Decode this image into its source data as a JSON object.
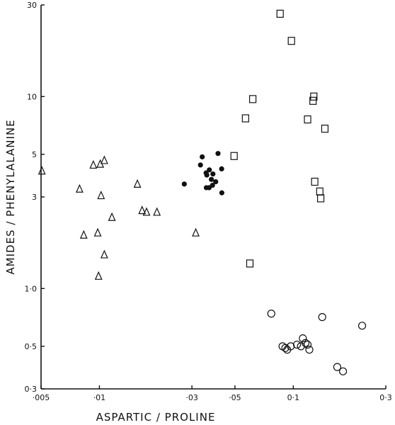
{
  "chart_data": {
    "type": "scatter",
    "title": "",
    "xlabel": "ASPARTIC / PROLINE",
    "ylabel": "AMIDES / PHENYLALANINE",
    "x_scale": "log",
    "y_scale": "log",
    "xlim": [
      0.005,
      0.3
    ],
    "ylim": [
      0.3,
      30
    ],
    "grid": false,
    "legend": "none",
    "x_ticks": [
      {
        "value": 0.005,
        "label": "·005"
      },
      {
        "value": 0.01,
        "label": "·01"
      },
      {
        "value": 0.03,
        "label": "·03"
      },
      {
        "value": 0.05,
        "label": "·05"
      },
      {
        "value": 0.1,
        "label": "0·1"
      },
      {
        "value": 0.3,
        "label": "0·3"
      }
    ],
    "y_ticks": [
      {
        "value": 0.3,
        "label": "0·3"
      },
      {
        "value": 0.5,
        "label": "0·5"
      },
      {
        "value": 1,
        "label": "1·0"
      },
      {
        "value": 3,
        "label": "3"
      },
      {
        "value": 5,
        "label": "5"
      },
      {
        "value": 10,
        "label": "10"
      },
      {
        "value": 30,
        "label": "30"
      }
    ],
    "series": [
      {
        "marker": "triangle-open",
        "points": [
          [
            0.00505,
            4.1
          ],
          [
            0.0079,
            3.3
          ],
          [
            0.0083,
            1.9
          ],
          [
            0.0093,
            4.4
          ],
          [
            0.0101,
            4.45
          ],
          [
            0.0106,
            4.65
          ],
          [
            0.0098,
            1.95
          ],
          [
            0.0102,
            3.05
          ],
          [
            0.0106,
            1.5
          ],
          [
            0.0116,
            2.35
          ],
          [
            0.0099,
            1.16
          ],
          [
            0.0157,
            3.5
          ],
          [
            0.0166,
            2.55
          ],
          [
            0.0175,
            2.5
          ],
          [
            0.0198,
            2.5
          ],
          [
            0.0314,
            1.95
          ]
        ]
      },
      {
        "marker": "circle-filled",
        "points": [
          [
            0.0274,
            3.5
          ],
          [
            0.0332,
            4.4
          ],
          [
            0.0339,
            4.85
          ],
          [
            0.0355,
            4.0
          ],
          [
            0.0369,
            4.15
          ],
          [
            0.0358,
            3.9
          ],
          [
            0.0378,
            3.7
          ],
          [
            0.0385,
            3.95
          ],
          [
            0.0383,
            3.45
          ],
          [
            0.0398,
            3.6
          ],
          [
            0.0356,
            3.35
          ],
          [
            0.0368,
            3.35
          ],
          [
            0.0409,
            5.05
          ],
          [
            0.0427,
            4.2
          ],
          [
            0.0428,
            3.15
          ]
        ]
      },
      {
        "marker": "square-open",
        "points": [
          [
            0.0855,
            27
          ],
          [
            0.0978,
            19.5
          ],
          [
            0.0618,
            9.7
          ],
          [
            0.0567,
            7.7
          ],
          [
            0.0495,
            4.9
          ],
          [
            0.0597,
            1.35
          ],
          [
            0.1276,
            10
          ],
          [
            0.1264,
            9.5
          ],
          [
            0.1185,
            7.6
          ],
          [
            0.1455,
            6.8
          ],
          [
            0.129,
            3.6
          ],
          [
            0.137,
            3.2
          ],
          [
            0.1385,
            2.95
          ]
        ]
      },
      {
        "marker": "circle-open",
        "points": [
          [
            0.077,
            0.74
          ],
          [
            0.088,
            0.5
          ],
          [
            0.091,
            0.49
          ],
          [
            0.093,
            0.48
          ],
          [
            0.097,
            0.5
          ],
          [
            0.1045,
            0.51
          ],
          [
            0.1095,
            0.5
          ],
          [
            0.112,
            0.55
          ],
          [
            0.1155,
            0.52
          ],
          [
            0.1185,
            0.51
          ],
          [
            0.121,
            0.48
          ],
          [
            0.141,
            0.71
          ],
          [
            0.1685,
            0.39
          ],
          [
            0.1805,
            0.37
          ],
          [
            0.2265,
            0.64
          ]
        ]
      }
    ]
  }
}
